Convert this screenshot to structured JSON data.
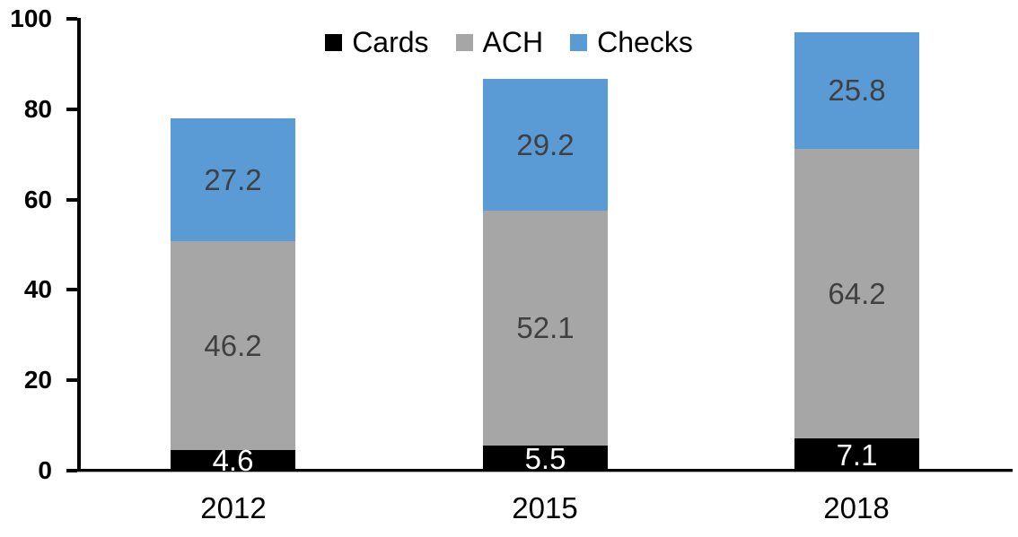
{
  "chart_data": {
    "type": "bar",
    "stacked": true,
    "title": "",
    "xlabel": "",
    "ylabel": "",
    "categories": [
      "2012",
      "2015",
      "2018"
    ],
    "series": [
      {
        "name": "Cards",
        "color": "#000000",
        "label_color": "#ffffff",
        "values": [
          4.6,
          5.5,
          7.1
        ]
      },
      {
        "name": "ACH",
        "color": "#a6a6a6",
        "label_color": "#404040",
        "values": [
          46.2,
          52.1,
          64.2
        ]
      },
      {
        "name": "Checks",
        "color": "#5b9bd5",
        "label_color": "#404040",
        "values": [
          27.2,
          29.2,
          25.8
        ]
      }
    ],
    "totals": [
      78.0,
      86.8,
      97.1
    ],
    "ylim": [
      0,
      100
    ],
    "yticks": [
      0,
      20,
      40,
      60,
      80,
      100
    ],
    "grid": false,
    "legend_position": "top-center",
    "data_labels": true,
    "axis_color": "#000000",
    "background_color": "#ffffff"
  }
}
